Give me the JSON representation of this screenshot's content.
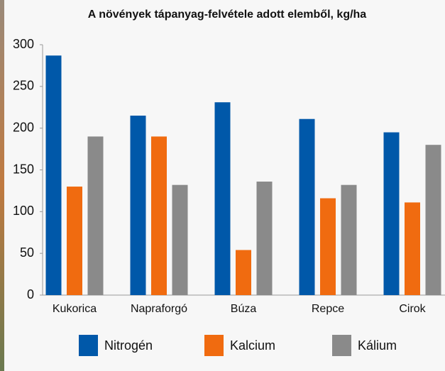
{
  "chart_data": {
    "type": "bar",
    "title": "A növények tápanyag-felvétele adott elemből, kg/ha",
    "categories": [
      "Kukorica",
      "Napraforgó",
      "Búza",
      "Repce",
      "Cirok"
    ],
    "series": [
      {
        "name": "Nitrogén",
        "color": "#0058a9",
        "values": [
          287,
          215,
          231,
          211,
          195
        ]
      },
      {
        "name": "Kalcium",
        "color": "#f06b10",
        "values": [
          130,
          190,
          54,
          116,
          111
        ]
      },
      {
        "name": "Kálium",
        "color": "#8a8a8a",
        "values": [
          190,
          132,
          136,
          132,
          180
        ]
      }
    ],
    "ylim": [
      0,
      300
    ],
    "yticks": [
      0,
      50,
      100,
      150,
      200,
      250,
      300
    ],
    "grid": false
  }
}
